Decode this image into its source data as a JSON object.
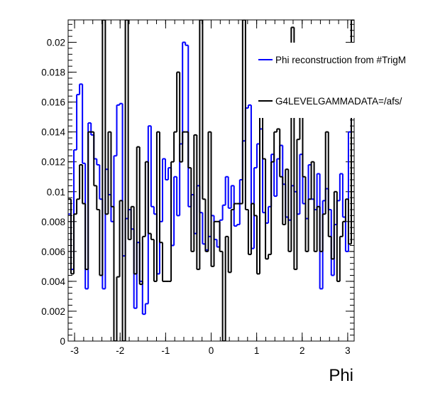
{
  "chart_data": {
    "type": "histogram",
    "xlabel": "Phi",
    "ylabel": "",
    "xlim": [
      -3.1416,
      3.1416
    ],
    "ylim": [
      0,
      0.0215
    ],
    "x_ticks": [
      {
        "v": -3,
        "label": "-3"
      },
      {
        "v": -2,
        "label": "-2"
      },
      {
        "v": -1,
        "label": "-1"
      },
      {
        "v": 0,
        "label": "0"
      },
      {
        "v": 1,
        "label": "1"
      },
      {
        "v": 2,
        "label": "2"
      },
      {
        "v": 3,
        "label": "3"
      }
    ],
    "y_ticks": [
      {
        "v": 0,
        "label": "0"
      },
      {
        "v": 0.002,
        "label": "0.002"
      },
      {
        "v": 0.004,
        "label": "0.004"
      },
      {
        "v": 0.006,
        "label": "0.006"
      },
      {
        "v": 0.008,
        "label": "0.008"
      },
      {
        "v": 0.01,
        "label": "0.01"
      },
      {
        "v": 0.012,
        "label": "0.012"
      },
      {
        "v": 0.014,
        "label": "0.014"
      },
      {
        "v": 0.016,
        "label": "0.016"
      },
      {
        "v": 0.018,
        "label": "0.018"
      },
      {
        "v": 0.02,
        "label": "0.02"
      }
    ],
    "n_bins": 100,
    "series": [
      {
        "name": "Phi reconstruction from #TrigM",
        "color": "#0000ff",
        "values": [
          0.0085,
          0.0048,
          0.0128,
          0.0165,
          0.0172,
          0.0119,
          0.0035,
          0.0146,
          0.0138,
          0.0122,
          0.0118,
          0.0095,
          0.0035,
          0.0115,
          0.0098,
          0.008,
          0.0124,
          0.0158,
          0.0159,
          0.0057,
          0.0082,
          0.0088,
          0.0075,
          0.0022,
          0.0066,
          0.004,
          0.0018,
          0.0025,
          0.0144,
          0.009,
          0.0085,
          0.0045,
          0.008,
          0.0122,
          0.0108,
          0.0116,
          0.0064,
          0.011,
          0.0084,
          0.0132,
          0.02,
          0.0198,
          0.009,
          0.0098,
          0.0072,
          0.0104,
          0.0086,
          0.0065,
          0.0061,
          0.007,
          0.0084,
          0.0068,
          0.0063,
          0.0081,
          0.0091,
          0.011,
          0.0089,
          0.0104,
          0.0077,
          0.0078,
          0.0108,
          0.0134,
          0.0156,
          0.0158,
          0.0062,
          0.0116,
          0.0132,
          0.0142,
          0.0086,
          0.0079,
          0.009,
          0.0125,
          0.0097,
          0.0122,
          0.0131,
          0.0105,
          0.0083,
          0.0081,
          0.0104,
          0.01,
          0.0085,
          0.0125,
          0.0092,
          0.0082,
          0.0118,
          0.0095,
          0.0088,
          0.0112,
          0.0035,
          0.0094,
          0.0102,
          0.0088,
          0.0044,
          0.0078,
          0.0094,
          0.0112,
          0.0083,
          0.006,
          0.014,
          0.0185
        ]
      },
      {
        "name": "G4LEVELGAMMADATA=/afs/",
        "color": "#000000",
        "values": [
          0.0095,
          0.0045,
          0.0085,
          0.0095,
          0.0118,
          0.0092,
          0.0048,
          0.014,
          0.014,
          0.0104,
          0.0088,
          0.0044,
          0.0215,
          0.0085,
          0.014,
          0.009,
          0.0,
          0.0043,
          0.0094,
          0.0,
          0.0215,
          0.0068,
          0.009,
          0.0045,
          0.013,
          0.0038,
          0.007,
          0.012,
          0.0072,
          0.0068,
          0.004,
          0.014,
          0.0066,
          0.004,
          0.004,
          0.004,
          0.012,
          0.014,
          0.018,
          0.012,
          0.014,
          0.014,
          0.0116,
          0.006,
          0.0138,
          0.0048,
          0.0215,
          0.0095,
          0.006,
          0.014,
          0.005,
          0.008,
          0.008,
          0.006,
          0.0,
          0.007,
          0.0046,
          0.0088,
          0.0092,
          0.0092,
          0.0092,
          0.0215,
          0.0088,
          0.0058,
          0.0092,
          0.0084,
          0.0045,
          0.018,
          0.0122,
          0.0055,
          0.0058,
          0.012,
          0.014,
          0.0142,
          0.011,
          0.0078,
          0.0115,
          0.006,
          0.021,
          0.0048,
          0.0135,
          0.015,
          0.011,
          0.006,
          0.0095,
          0.012,
          0.006,
          0.009,
          0.006,
          0.0085,
          0.014,
          0.007,
          0.0055,
          0.01,
          0.004,
          0.007,
          0.008,
          0.0095,
          0.0065,
          0.0215
        ]
      }
    ],
    "legend": {
      "placement": "top-right",
      "entries": [
        {
          "label": "Phi reconstruction from #TrigM",
          "color": "#0000ff"
        },
        {
          "label": "G4LEVELGAMMADATA=/afs/",
          "color": "#000000"
        }
      ]
    }
  }
}
